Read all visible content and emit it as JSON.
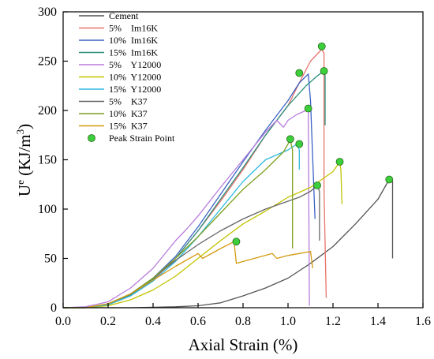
{
  "chart_data": {
    "type": "line",
    "title": "",
    "xlabel": "Axial Strain (%)",
    "ylabel": {
      "base": "U",
      "sup": "e",
      "mid": " (KJ/m",
      "unit_sup": "3",
      "end": ")"
    },
    "xlim": [
      0.0,
      1.6
    ],
    "ylim": [
      0,
      300
    ],
    "xticks": [
      "0.0",
      "0.2",
      "0.4",
      "0.6",
      "0.8",
      "1.0",
      "1.2",
      "1.4",
      "1.6"
    ],
    "yticks": [
      "0",
      "50",
      "100",
      "150",
      "200",
      "250",
      "300"
    ],
    "grid": false,
    "legend_position": "top-left",
    "series": [
      {
        "name": "Cement",
        "color": "#555555",
        "points": [
          [
            0,
            0
          ],
          [
            0.3,
            0
          ],
          [
            0.5,
            1
          ],
          [
            0.6,
            2
          ],
          [
            0.7,
            5
          ],
          [
            0.8,
            12
          ],
          [
            0.9,
            20
          ],
          [
            1.0,
            30
          ],
          [
            1.1,
            45
          ],
          [
            1.2,
            62
          ],
          [
            1.3,
            85
          ],
          [
            1.4,
            110
          ],
          [
            1.45,
            130
          ],
          [
            1.465,
            128
          ],
          [
            1.465,
            50
          ]
        ]
      },
      {
        "name": "5%    Im16K",
        "color": "#e8736c",
        "points": [
          [
            0,
            0
          ],
          [
            0.1,
            0
          ],
          [
            0.2,
            3
          ],
          [
            0.3,
            12
          ],
          [
            0.4,
            28
          ],
          [
            0.5,
            50
          ],
          [
            0.6,
            78
          ],
          [
            0.7,
            108
          ],
          [
            0.8,
            140
          ],
          [
            0.9,
            175
          ],
          [
            1.0,
            205
          ],
          [
            1.05,
            228
          ],
          [
            1.1,
            250
          ],
          [
            1.15,
            262
          ],
          [
            1.16,
            258
          ],
          [
            1.16,
            120
          ],
          [
            1.17,
            10
          ]
        ]
      },
      {
        "name": "10%  Im16K",
        "color": "#3b62c4",
        "points": [
          [
            0,
            0
          ],
          [
            0.1,
            0
          ],
          [
            0.2,
            3
          ],
          [
            0.3,
            14
          ],
          [
            0.4,
            30
          ],
          [
            0.5,
            52
          ],
          [
            0.6,
            82
          ],
          [
            0.7,
            115
          ],
          [
            0.8,
            148
          ],
          [
            0.9,
            180
          ],
          [
            1.0,
            210
          ],
          [
            1.05,
            228
          ],
          [
            1.09,
            237
          ],
          [
            1.1,
            210
          ],
          [
            1.12,
            90
          ]
        ]
      },
      {
        "name": "15%  Im16K",
        "color": "#2b8f7e",
        "points": [
          [
            0,
            0
          ],
          [
            0.1,
            0
          ],
          [
            0.2,
            3
          ],
          [
            0.3,
            13
          ],
          [
            0.4,
            29
          ],
          [
            0.5,
            50
          ],
          [
            0.6,
            78
          ],
          [
            0.7,
            110
          ],
          [
            0.8,
            142
          ],
          [
            0.9,
            175
          ],
          [
            1.0,
            205
          ],
          [
            1.08,
            225
          ],
          [
            1.13,
            235
          ],
          [
            1.16,
            240
          ],
          [
            1.165,
            235
          ],
          [
            1.165,
            185
          ]
        ]
      },
      {
        "name": "5%    Y12000",
        "color": "#b77cdc",
        "points": [
          [
            0,
            0
          ],
          [
            0.1,
            1
          ],
          [
            0.2,
            6
          ],
          [
            0.3,
            20
          ],
          [
            0.4,
            40
          ],
          [
            0.5,
            68
          ],
          [
            0.55,
            80
          ],
          [
            0.6,
            93
          ],
          [
            0.7,
            122
          ],
          [
            0.8,
            150
          ],
          [
            0.9,
            178
          ],
          [
            0.95,
            190
          ],
          [
            0.98,
            183
          ],
          [
            1.0,
            190
          ],
          [
            1.04,
            196
          ],
          [
            1.08,
            200
          ],
          [
            1.09,
            200
          ],
          [
            1.095,
            2
          ]
        ]
      },
      {
        "name": "10%  Y12000",
        "color": "#c2c400",
        "points": [
          [
            0,
            0
          ],
          [
            0.1,
            0
          ],
          [
            0.2,
            2
          ],
          [
            0.3,
            8
          ],
          [
            0.4,
            18
          ],
          [
            0.5,
            32
          ],
          [
            0.6,
            50
          ],
          [
            0.7,
            68
          ],
          [
            0.8,
            85
          ],
          [
            0.9,
            98
          ],
          [
            1.0,
            112
          ],
          [
            1.1,
            122
          ],
          [
            1.2,
            138
          ],
          [
            1.23,
            148
          ],
          [
            1.235,
            140
          ],
          [
            1.24,
            105
          ]
        ]
      },
      {
        "name": "15%  Y12000",
        "color": "#2fb9e0",
        "points": [
          [
            0,
            0
          ],
          [
            0.1,
            0
          ],
          [
            0.2,
            3
          ],
          [
            0.3,
            12
          ],
          [
            0.4,
            27
          ],
          [
            0.5,
            47
          ],
          [
            0.6,
            72
          ],
          [
            0.7,
            100
          ],
          [
            0.8,
            128
          ],
          [
            0.9,
            150
          ],
          [
            1.0,
            160
          ],
          [
            1.04,
            166
          ],
          [
            1.05,
            160
          ],
          [
            1.05,
            140
          ]
        ]
      },
      {
        "name": "5%    K37",
        "color": "#666666",
        "points": [
          [
            0,
            0
          ],
          [
            0.1,
            0
          ],
          [
            0.2,
            4
          ],
          [
            0.3,
            14
          ],
          [
            0.4,
            30
          ],
          [
            0.5,
            48
          ],
          [
            0.6,
            64
          ],
          [
            0.7,
            78
          ],
          [
            0.8,
            90
          ],
          [
            0.9,
            100
          ],
          [
            1.0,
            108
          ],
          [
            1.05,
            112
          ],
          [
            1.1,
            118
          ],
          [
            1.13,
            124
          ],
          [
            1.14,
            118
          ],
          [
            1.14,
            68
          ]
        ]
      },
      {
        "name": "10%  K37",
        "color": "#7fa020",
        "points": [
          [
            0,
            0
          ],
          [
            0.1,
            0
          ],
          [
            0.2,
            4
          ],
          [
            0.3,
            14
          ],
          [
            0.4,
            30
          ],
          [
            0.5,
            50
          ],
          [
            0.6,
            72
          ],
          [
            0.7,
            96
          ],
          [
            0.8,
            120
          ],
          [
            0.9,
            140
          ],
          [
            0.98,
            158
          ],
          [
            1.01,
            170
          ],
          [
            1.02,
            160
          ],
          [
            1.02,
            60
          ]
        ]
      },
      {
        "name": "15%  K37",
        "color": "#d49a10",
        "points": [
          [
            0,
            0
          ],
          [
            0.1,
            0
          ],
          [
            0.2,
            4
          ],
          [
            0.3,
            14
          ],
          [
            0.4,
            28
          ],
          [
            0.5,
            42
          ],
          [
            0.6,
            55
          ],
          [
            0.62,
            50
          ],
          [
            0.7,
            60
          ],
          [
            0.76,
            67
          ],
          [
            0.77,
            45
          ],
          [
            0.85,
            50
          ],
          [
            0.93,
            55
          ],
          [
            0.95,
            50
          ],
          [
            1.0,
            53
          ],
          [
            1.05,
            55
          ],
          [
            1.1,
            57
          ],
          [
            1.11,
            40
          ]
        ]
      }
    ],
    "peak_points": {
      "name": "Peak Strain Point",
      "color": "#3ccf3c",
      "points": [
        [
          1.45,
          130
        ],
        [
          1.15,
          265
        ],
        [
          1.05,
          238
        ],
        [
          1.16,
          240
        ],
        [
          1.09,
          202
        ],
        [
          1.23,
          148
        ],
        [
          1.05,
          166
        ],
        [
          1.13,
          124
        ],
        [
          1.01,
          171
        ],
        [
          0.77,
          67
        ]
      ]
    }
  }
}
